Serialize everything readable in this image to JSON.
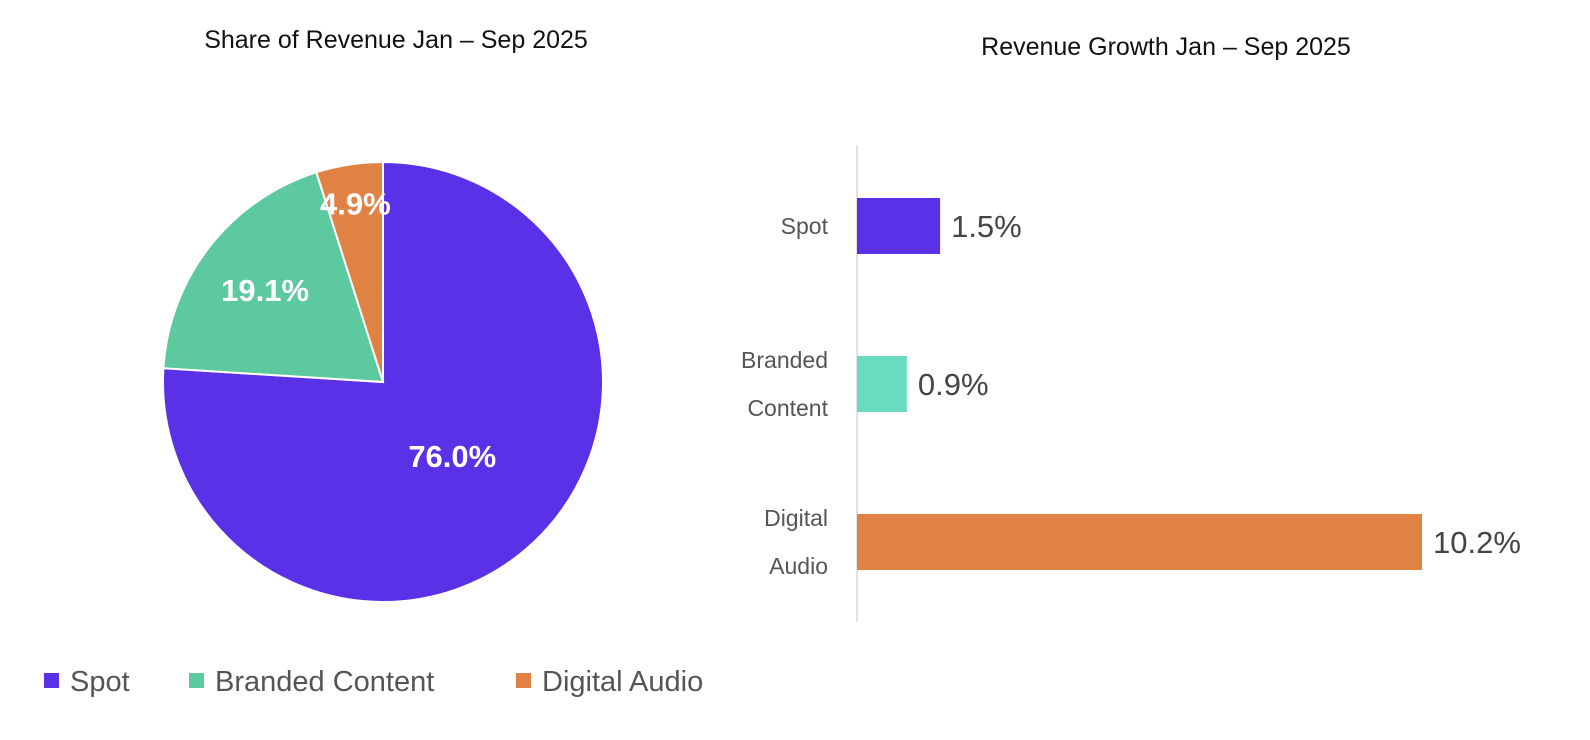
{
  "chart_data": [
    {
      "type": "pie",
      "title": "Share of Revenue Jan – Sep 2025",
      "categories": [
        "Spot",
        "Branded Content",
        "Digital Audio"
      ],
      "values": [
        76.0,
        19.1,
        4.9
      ],
      "labels": [
        "76.0%",
        "19.1%",
        "4.9%"
      ],
      "colors": [
        "#5A31E6",
        "#5CC99E",
        "#E08244"
      ],
      "legend": "bottom-left"
    },
    {
      "type": "bar",
      "orientation": "horizontal",
      "title": "Revenue Growth Jan – Sep 2025",
      "categories": [
        [
          "Spot"
        ],
        [
          "Branded",
          "Content"
        ],
        [
          "Digital",
          "Audio"
        ]
      ],
      "values": [
        1.5,
        0.9,
        10.2
      ],
      "labels": [
        "1.5%",
        "0.9%",
        "10.2%"
      ],
      "colors": [
        "#5A31E6",
        "#68DCC0",
        "#E08244"
      ],
      "xlim": [
        0,
        10.2
      ],
      "grid": false
    }
  ]
}
